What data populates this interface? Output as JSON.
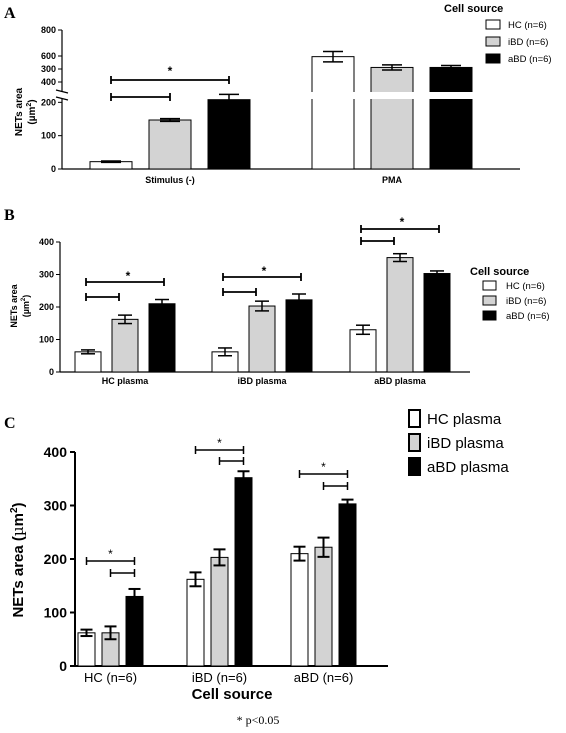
{
  "panel_labels": [
    "A",
    "B",
    "C"
  ],
  "footnote": "* p<0.05",
  "colors": {
    "HC": "#ffffff",
    "iBD": "#d3d3d3",
    "aBD": "#000000"
  },
  "chart_data": [
    {
      "panel": "A",
      "type": "bar",
      "ylabel": "NETs area (µm²)",
      "ylabel_parts": [
        "NETs area",
        "(µm",
        "2",
        ")"
      ],
      "legend_title": "Cell source",
      "legend_position": "top-right",
      "categories": [
        "Stimulus (-)",
        "PMA"
      ],
      "y_axis_break": true,
      "ylim_lower": [
        0,
        300
      ],
      "ylim_upper": [
        400,
        800
      ],
      "yticks_lower": [
        0,
        100,
        200,
        300
      ],
      "yticks_upper": [
        400,
        600,
        800
      ],
      "series": [
        {
          "name": "HC (n=6)",
          "values": [
            22,
            595
          ],
          "errors": [
            2,
            40
          ]
        },
        {
          "name": "iBD (n=6)",
          "values": [
            147,
            512
          ],
          "errors": [
            4,
            20
          ]
        },
        {
          "name": "aBD (n=6)",
          "values": [
            208,
            512
          ],
          "errors": [
            16,
            15
          ]
        }
      ],
      "significance": [
        {
          "category": "Stimulus (-)",
          "from": 0,
          "to": 1,
          "label": ""
        },
        {
          "category": "Stimulus (-)",
          "from": 0,
          "to": 2,
          "label": "*"
        }
      ],
      "grid": false
    },
    {
      "panel": "B",
      "type": "bar",
      "ylabel": "NETs area (µm²)",
      "ylabel_parts": [
        "NETs area",
        "(µm",
        "2",
        ")"
      ],
      "legend_title": "Cell source",
      "legend_position": "right",
      "categories": [
        "HC plasma",
        "iBD plasma",
        "aBD plasma"
      ],
      "ylim": [
        0,
        400
      ],
      "yticks": [
        0,
        100,
        200,
        300,
        400
      ],
      "series": [
        {
          "name": "HC (n=6)",
          "values": [
            62,
            62,
            130
          ],
          "errors": [
            6,
            12,
            14
          ]
        },
        {
          "name": "iBD (n=6)",
          "values": [
            162,
            203,
            352
          ],
          "errors": [
            13,
            15,
            12
          ]
        },
        {
          "name": "aBD (n=6)",
          "values": [
            210,
            222,
            303
          ],
          "errors": [
            13,
            18,
            8
          ]
        }
      ],
      "significance": [
        {
          "category": "HC plasma",
          "from": 0,
          "to": 1,
          "label": ""
        },
        {
          "category": "HC plasma",
          "from": 0,
          "to": 2,
          "label": "*"
        },
        {
          "category": "iBD plasma",
          "from": 0,
          "to": 1,
          "label": ""
        },
        {
          "category": "iBD plasma",
          "from": 0,
          "to": 2,
          "label": "*"
        },
        {
          "category": "aBD plasma",
          "from": 0,
          "to": 1,
          "label": ""
        },
        {
          "category": "aBD plasma",
          "from": 0,
          "to": 2,
          "label": "*"
        }
      ],
      "grid": false
    },
    {
      "panel": "C",
      "type": "bar",
      "ylabel": "NETs area (µm²)",
      "ylabel_parts": [
        "NETs area (",
        "µ",
        "m",
        "2",
        ")"
      ],
      "xlabel": "Cell source",
      "legend_position": "top-right",
      "categories": [
        "HC (n=6)",
        "iBD (n=6)",
        "aBD (n=6)"
      ],
      "ylim": [
        0,
        400
      ],
      "yticks": [
        0,
        100,
        200,
        300,
        400
      ],
      "series": [
        {
          "name": "HC plasma",
          "values": [
            62,
            162,
            210
          ],
          "errors": [
            6,
            13,
            13
          ]
        },
        {
          "name": "iBD plasma",
          "values": [
            62,
            203,
            222
          ],
          "errors": [
            12,
            15,
            18
          ]
        },
        {
          "name": "aBD plasma",
          "values": [
            130,
            352,
            303
          ],
          "errors": [
            14,
            12,
            8
          ]
        }
      ],
      "significance": [
        {
          "category": "HC (n=6)",
          "from": 1,
          "to": 2,
          "label": ""
        },
        {
          "category": "HC (n=6)",
          "from": 0,
          "to": 2,
          "label": "*"
        },
        {
          "category": "iBD (n=6)",
          "from": 1,
          "to": 2,
          "label": ""
        },
        {
          "category": "iBD (n=6)",
          "from": 0,
          "to": 2,
          "label": "*"
        },
        {
          "category": "aBD (n=6)",
          "from": 1,
          "to": 2,
          "label": ""
        },
        {
          "category": "aBD (n=6)",
          "from": 0,
          "to": 2,
          "label": "*"
        }
      ],
      "grid": false
    }
  ]
}
